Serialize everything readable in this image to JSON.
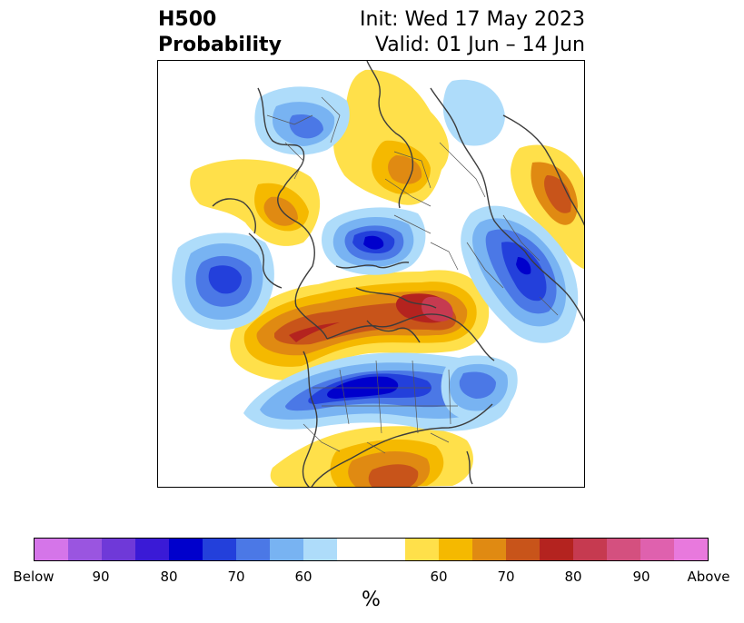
{
  "title": {
    "line1": "H500",
    "line2": "Probability",
    "init": "Init: Wed 17 May 2023",
    "valid": "Valid: 01 Jun – 14 Jun"
  },
  "colorbar": {
    "label": "%",
    "ticks": [
      "Below",
      "90",
      "80",
      "70",
      "60",
      "60",
      "70",
      "80",
      "90",
      "Above"
    ],
    "colors": [
      "#d575e9",
      "#9a55e0",
      "#6f39d8",
      "#3a1ad6",
      "#0000cc",
      "#2340db",
      "#4b78e6",
      "#78b3f2",
      "#aedcfa",
      "#ffffff",
      "#ffe04a",
      "#f5b900",
      "#e08a12",
      "#c8541a",
      "#b4231f",
      "#c63a50",
      "#d4507f",
      "#df61ae",
      "#e879dd"
    ]
  },
  "map_layers": [
    {
      "sign": "above",
      "level": 60,
      "color": "#ffe04a"
    },
    {
      "sign": "above",
      "level": 65,
      "color": "#f5b900"
    },
    {
      "sign": "above",
      "level": 70,
      "color": "#e08a12"
    },
    {
      "sign": "above",
      "level": 75,
      "color": "#c8541a"
    },
    {
      "sign": "above",
      "level": 80,
      "color": "#b4231f"
    },
    {
      "sign": "above",
      "level": 85,
      "color": "#c63a50"
    },
    {
      "sign": "below",
      "level": 60,
      "color": "#aedcfa"
    },
    {
      "sign": "below",
      "level": 65,
      "color": "#78b3f2"
    },
    {
      "sign": "below",
      "level": 70,
      "color": "#4b78e6"
    },
    {
      "sign": "below",
      "level": 75,
      "color": "#2340db"
    },
    {
      "sign": "below",
      "level": 80,
      "color": "#0000cc"
    },
    {
      "sign": "below",
      "level": 85,
      "color": "#3a1ad6"
    }
  ]
}
